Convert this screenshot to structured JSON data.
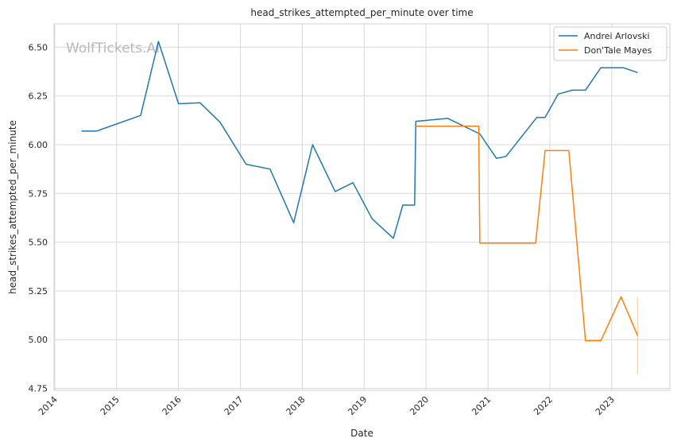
{
  "chart_data": {
    "type": "line",
    "title": "head_strikes_attempted_per_minute over time",
    "xlabel": "Date",
    "ylabel": "head_strikes_attempted_per_minute",
    "watermark": "WolfTickets.AI",
    "x_ticks": [
      "2014",
      "2015",
      "2016",
      "2017",
      "2018",
      "2019",
      "2020",
      "2021",
      "2022",
      "2023"
    ],
    "y_ticks": [
      "4.75",
      "5.00",
      "5.25",
      "5.50",
      "5.75",
      "6.00",
      "6.25",
      "6.50"
    ],
    "xlim": [
      "2013-12-28",
      "2023-12-10"
    ],
    "ylim": [
      4.74,
      6.62
    ],
    "grid": true,
    "legend_position": "top-right",
    "series": [
      {
        "name": "Andrei Arlovski",
        "color": "#1f77b4",
        "points": [
          [
            "2014-06-07",
            6.07
          ],
          [
            "2014-09-05",
            6.07
          ],
          [
            "2015-05-23",
            6.15
          ],
          [
            "2015-09-05",
            6.53
          ],
          [
            "2016-01-02",
            6.21
          ],
          [
            "2016-05-08",
            6.215
          ],
          [
            "2016-09-03",
            6.115
          ],
          [
            "2017-02-04",
            5.9
          ],
          [
            "2017-06-25",
            5.875
          ],
          [
            "2017-11-11",
            5.6
          ],
          [
            "2018-03-03",
            6.0
          ],
          [
            "2018-07-14",
            5.76
          ],
          [
            "2018-10-27",
            5.805
          ],
          [
            "2019-02-17",
            5.62
          ],
          [
            "2019-06-22",
            5.52
          ],
          [
            "2019-08-17",
            5.69
          ],
          [
            "2019-10-26",
            5.69
          ],
          [
            "2019-11-02",
            6.12
          ],
          [
            "2020-05-09",
            6.135
          ],
          [
            "2020-11-14",
            6.055
          ],
          [
            "2021-02-20",
            5.93
          ],
          [
            "2021-04-17",
            5.94
          ],
          [
            "2021-10-16",
            6.14
          ],
          [
            "2021-12-04",
            6.14
          ],
          [
            "2022-02-19",
            6.26
          ],
          [
            "2022-05-14",
            6.28
          ],
          [
            "2022-07-30",
            6.28
          ],
          [
            "2022-10-29",
            6.395
          ],
          [
            "2023-03-11",
            6.395
          ],
          [
            "2023-06-03",
            6.37
          ]
        ]
      },
      {
        "name": "Don'Tale Mayes",
        "color": "#ff7f0e",
        "points": [
          [
            "2019-11-02",
            6.095
          ],
          [
            "2020-11-07",
            6.095
          ],
          [
            "2020-11-14",
            5.495
          ],
          [
            "2021-10-09",
            5.495
          ],
          [
            "2021-12-04",
            5.97
          ],
          [
            "2022-04-23",
            5.97
          ],
          [
            "2022-07-30",
            4.995
          ],
          [
            "2022-10-29",
            4.995
          ],
          [
            "2023-02-25",
            5.22
          ],
          [
            "2023-06-03",
            5.02
          ]
        ],
        "band": {
          "x": "2023-06-03",
          "low": 4.82,
          "high": 5.22
        }
      }
    ]
  }
}
